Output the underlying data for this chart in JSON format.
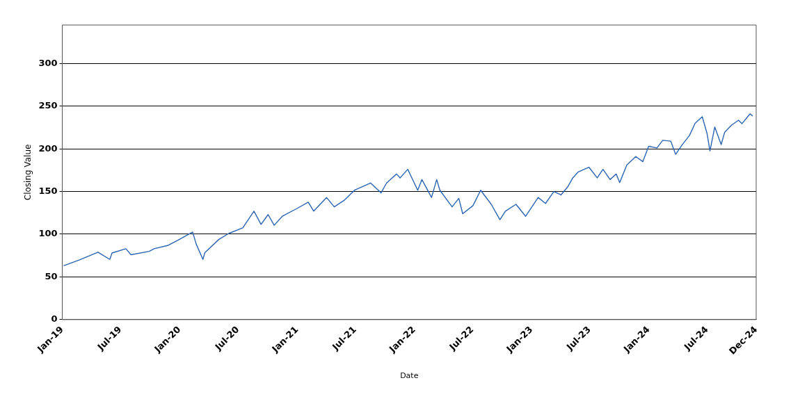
{
  "chart_data": {
    "type": "line",
    "xlabel": "Date",
    "ylabel": "Closing Value",
    "xlim": [
      "2019-01-01",
      "2024-12-01"
    ],
    "xticks": [
      {
        "value": "2019-01-01",
        "label": "Jan-19"
      },
      {
        "value": "2019-07-01",
        "label": "Jul-19"
      },
      {
        "value": "2020-01-01",
        "label": "Jan-20"
      },
      {
        "value": "2020-07-01",
        "label": "Jul-20"
      },
      {
        "value": "2021-01-01",
        "label": "Jan-21"
      },
      {
        "value": "2021-07-01",
        "label": "Jul-21"
      },
      {
        "value": "2022-01-01",
        "label": "Jan-22"
      },
      {
        "value": "2022-07-01",
        "label": "Jul-22"
      },
      {
        "value": "2023-01-01",
        "label": "Jan-23"
      },
      {
        "value": "2023-07-01",
        "label": "Jul-23"
      },
      {
        "value": "2024-01-01",
        "label": "Jan-24"
      },
      {
        "value": "2024-07-01",
        "label": "Jul-24"
      },
      {
        "value": "2024-12-01",
        "label": "Dec-24"
      }
    ],
    "ylim": [
      0,
      345
    ],
    "yticks": [
      0,
      50,
      100,
      150,
      200,
      250,
      300
    ],
    "grid": "y",
    "legend": false,
    "marker": "none",
    "line_style": "solid",
    "series": [
      {
        "color": "#2a64b4",
        "x": [
          "2019-01-05",
          "2019-02-24",
          "2019-04-22",
          "2019-05-29",
          "2019-06-05",
          "2019-07-18",
          "2019-08-03",
          "2019-09-29",
          "2019-10-14",
          "2019-11-27",
          "2019-12-25",
          "2020-02-11",
          "2020-02-22",
          "2020-03-14",
          "2020-03-20",
          "2020-05-03",
          "2020-06-03",
          "2020-07-16",
          "2020-08-20",
          "2020-09-11",
          "2020-10-03",
          "2020-10-22",
          "2020-11-16",
          "2020-12-29",
          "2021-02-05",
          "2021-02-22",
          "2021-04-03",
          "2021-04-27",
          "2021-05-29",
          "2021-06-29",
          "2021-08-18",
          "2021-09-20",
          "2021-10-07",
          "2021-11-07",
          "2021-11-18",
          "2021-12-12",
          "2021-12-22",
          "2022-01-12",
          "2022-01-25",
          "2022-02-24",
          "2022-03-12",
          "2022-03-22",
          "2022-04-29",
          "2022-05-20",
          "2022-06-01",
          "2022-07-03",
          "2022-07-27",
          "2022-08-29",
          "2022-09-25",
          "2022-10-12",
          "2022-11-14",
          "2022-12-14",
          "2023-01-22",
          "2023-02-14",
          "2023-03-12",
          "2023-04-03",
          "2023-04-25",
          "2023-05-10",
          "2023-05-27",
          "2023-06-29",
          "2023-07-25",
          "2023-08-12",
          "2023-09-03",
          "2023-09-22",
          "2023-10-03",
          "2023-10-25",
          "2023-11-22",
          "2023-12-14",
          "2024-01-01",
          "2024-01-27",
          "2024-02-14",
          "2024-03-10",
          "2024-03-25",
          "2024-04-16",
          "2024-05-07",
          "2024-05-25",
          "2024-06-16",
          "2024-07-01",
          "2024-07-10",
          "2024-07-25",
          "2024-08-14",
          "2024-08-25",
          "2024-09-16",
          "2024-10-07",
          "2024-10-18",
          "2024-11-12",
          "2024-11-20"
        ],
        "values": [
          63,
          70,
          79,
          70.5,
          78,
          83,
          76,
          80,
          83,
          87,
          92.5,
          102.5,
          88.5,
          70.5,
          78.5,
          94,
          101,
          107.5,
          127,
          111.5,
          123,
          110.5,
          121,
          129.5,
          137.5,
          127,
          143,
          132,
          140,
          151.5,
          160,
          148.5,
          160,
          170.5,
          166,
          176,
          168,
          151.5,
          164,
          143,
          164,
          151.5,
          132,
          142,
          124,
          133.5,
          151.5,
          135,
          117,
          127,
          135,
          121,
          143,
          136,
          150,
          146,
          156,
          166,
          173,
          178.5,
          166,
          176,
          164,
          170.5,
          160.5,
          181,
          191,
          185,
          203,
          201,
          210,
          209,
          193.5,
          205.5,
          215.5,
          230,
          237.5,
          218,
          197.5,
          225.5,
          205,
          219.5,
          228,
          233.5,
          229.5,
          241,
          238.5
        ]
      }
    ]
  }
}
